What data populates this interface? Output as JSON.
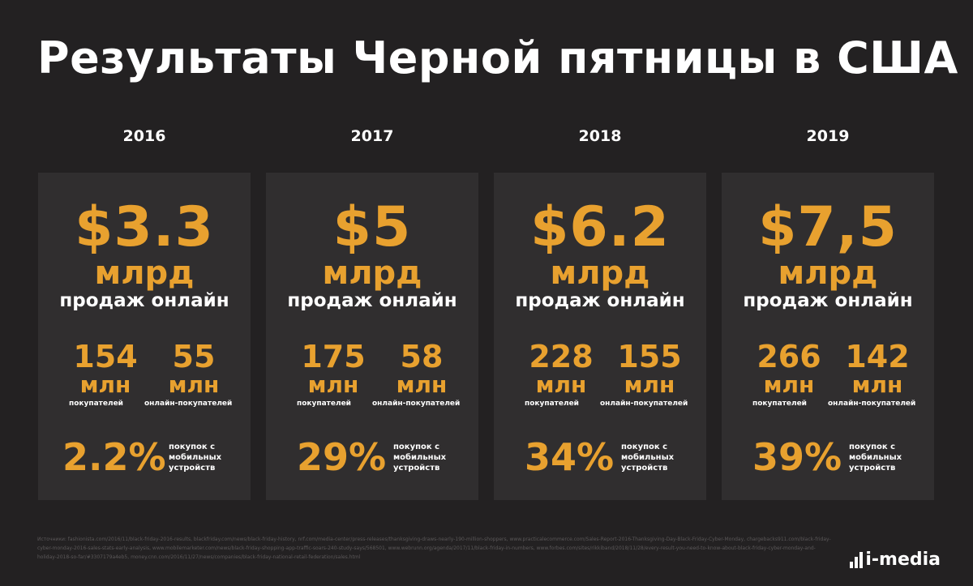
{
  "title": "Результаты Черной пятницы в США",
  "colors": {
    "accent": "#e8a12f",
    "background": "#232122",
    "card": "#302e2f"
  },
  "chart_data": {
    "type": "table",
    "title": "Результаты Черной пятницы в США",
    "years": [
      "2016",
      "2017",
      "2018",
      "2019"
    ],
    "online_sales_usd_bn": [
      3.3,
      5,
      6.2,
      7.5
    ],
    "buyers_mln": [
      154,
      175,
      228,
      266
    ],
    "online_buyers_mln": [
      55,
      58,
      155,
      142
    ],
    "mobile_share_pct": [
      2.2,
      29,
      34,
      39
    ]
  },
  "cards": [
    {
      "year": "2016",
      "amount": "$3.3",
      "amount_unit": "млрд",
      "amount_desc": "продаж онлайн",
      "buyers": "154",
      "buyers_unit": "млн",
      "buyers_label": "покупателей",
      "online": "55",
      "online_unit": "млн",
      "online_label": "онлайн-покупателей",
      "mobile": "2.2%",
      "mobile_label": "покупок с мобильных устройств"
    },
    {
      "year": "2017",
      "amount": "$5",
      "amount_unit": "млрд",
      "amount_desc": "продаж онлайн",
      "buyers": "175",
      "buyers_unit": "млн",
      "buyers_label": "покупателей",
      "online": "58",
      "online_unit": "млн",
      "online_label": "онлайн-покупателей",
      "mobile": "29%",
      "mobile_label": "покупок с мобильных устройств"
    },
    {
      "year": "2018",
      "amount": "$6.2",
      "amount_unit": "млрд",
      "amount_desc": "продаж онлайн",
      "buyers": "228",
      "buyers_unit": "млн",
      "buyers_label": "покупателей",
      "online": "155",
      "online_unit": "млн",
      "online_label": "онлайн-покупателей",
      "mobile": "34%",
      "mobile_label": "покупок с мобильных устройств"
    },
    {
      "year": "2019",
      "amount": "$7,5",
      "amount_unit": "млрд",
      "amount_desc": "продаж онлайн",
      "buyers": "266",
      "buyers_unit": "млн",
      "buyers_label": "покупателей",
      "online": "142",
      "online_unit": "млн",
      "online_label": "онлайн-покупателей",
      "mobile": "39%",
      "mobile_label": "покупок с мобильных устройств"
    }
  ],
  "sources": "Источники: fashionista.com/2016/11/black-friday-2016-results, blackfriday.com/news/black-friday-history, nrf.com/media-center/press-releases/thanksgiving-draws-nearly-190-million-shoppers, www.practicalecommerce.com/Sales-Report-2016-Thanksgiving-Day-Black-Friday-Cyber-Monday, chargebacks911.com/black-friday-cyber-monday-2016-sales-stats-early-analysis, www.mobilemarketer.com/news/black-friday-shopping-app-traffic-soars-240-study-says/568501, www.webrunn.org/agenda/2017/11/black-friday-in-numbers, www.forbes.com/sites/rikkiband/2018/11/28/every-result-you-need-to-know-about-black-friday-cyber-monday-and-holiday-2018-so-far/#3307179a4eb5, money.cnn.com/2016/11/27/news/companies/black-friday-national-retail-federation/sales.html",
  "logo": {
    "text": "i-media",
    "icon": "bars-icon"
  }
}
